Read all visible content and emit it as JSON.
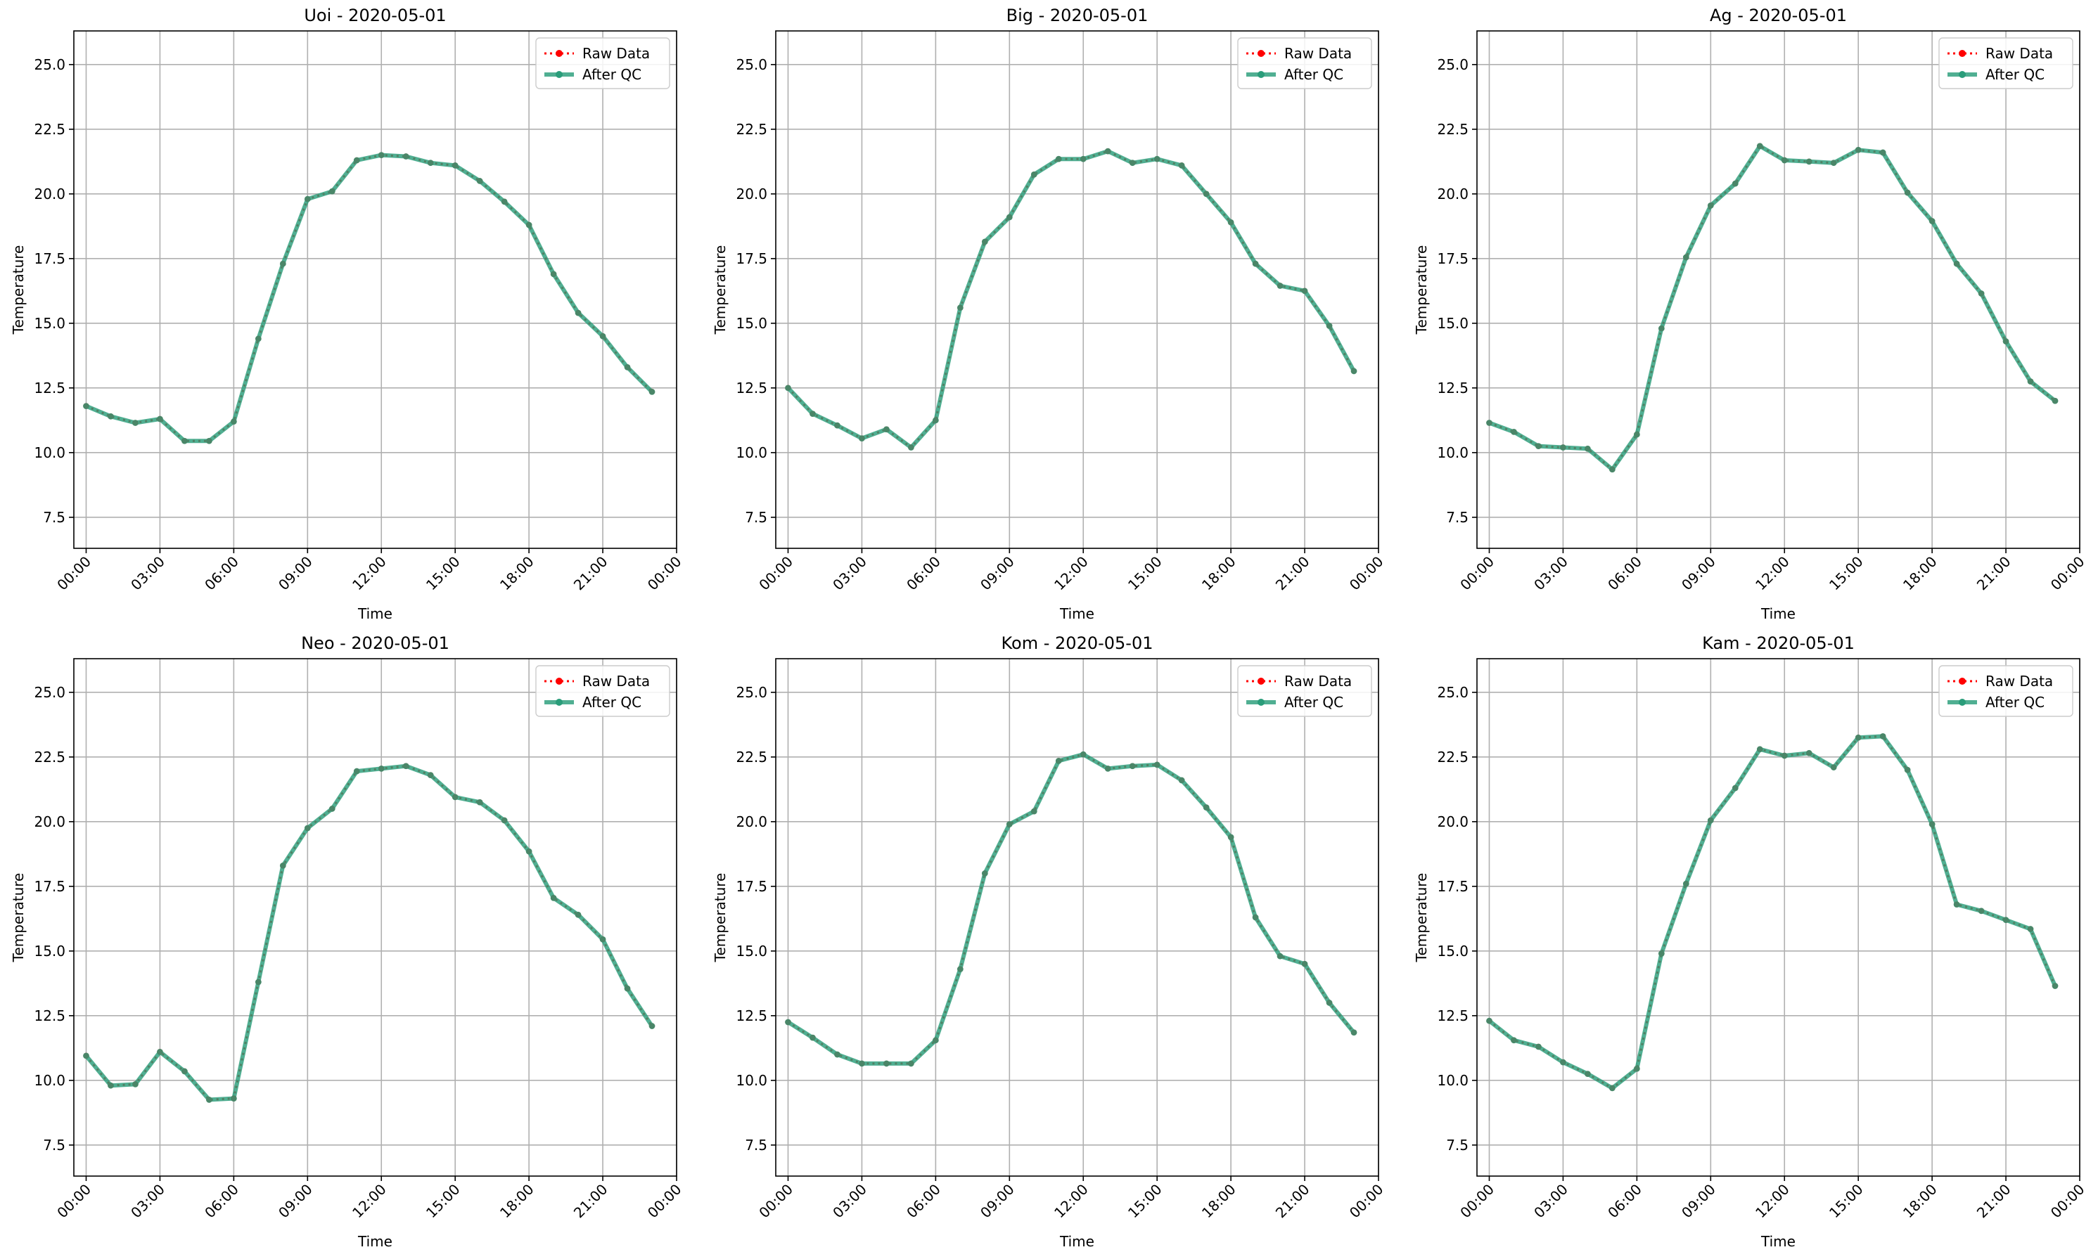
{
  "figure": {
    "colors": {
      "raw": "#ff0000",
      "qc": "#2a9d7a",
      "grid": "#b0b0b0",
      "axis": "#000000"
    }
  },
  "legend_labels": {
    "raw": "Raw Data",
    "qc": "After QC"
  },
  "chart_data": [
    {
      "type": "line",
      "title": "Uoi - 2020-05-01",
      "xlabel": "Time",
      "ylabel": "Temperature",
      "xlim": [
        -0.5,
        24.0
      ],
      "ylim": [
        6.3,
        26.3
      ],
      "xticks": [
        0,
        3,
        6,
        9,
        12,
        15,
        18,
        21,
        24
      ],
      "xtick_labels": [
        "00:00",
        "03:00",
        "06:00",
        "09:00",
        "12:00",
        "15:00",
        "18:00",
        "21:00",
        "00:00"
      ],
      "yticks": [
        7.5,
        10.0,
        12.5,
        15.0,
        17.5,
        20.0,
        22.5,
        25.0
      ],
      "ytick_labels": [
        "7.5",
        "10.0",
        "12.5",
        "15.0",
        "17.5",
        "20.0",
        "22.5",
        "25.0"
      ],
      "grid": true,
      "legend": "top-right",
      "x": [
        0,
        1,
        2,
        3,
        4,
        5,
        6,
        7,
        8,
        9,
        10,
        11,
        12,
        13,
        14,
        15,
        16,
        17,
        18,
        19,
        20,
        21,
        22,
        23
      ],
      "series": [
        {
          "name": "Raw Data",
          "values": [
            11.8,
            11.4,
            11.15,
            11.3,
            10.45,
            10.45,
            11.2,
            14.4,
            17.3,
            19.8,
            20.1,
            21.3,
            21.5,
            21.45,
            21.2,
            21.1,
            20.5,
            19.7,
            18.8,
            16.9,
            15.4,
            14.5,
            13.3,
            12.35
          ]
        },
        {
          "name": "After QC",
          "values": [
            11.8,
            11.4,
            11.15,
            11.3,
            10.45,
            10.45,
            11.2,
            14.4,
            17.3,
            19.8,
            20.1,
            21.3,
            21.5,
            21.45,
            21.2,
            21.1,
            20.5,
            19.7,
            18.8,
            16.9,
            15.4,
            14.5,
            13.3,
            12.35
          ]
        }
      ]
    },
    {
      "type": "line",
      "title": "Big - 2020-05-01",
      "xlabel": "Time",
      "ylabel": "Temperature",
      "xlim": [
        -0.5,
        24.0
      ],
      "ylim": [
        6.3,
        26.3
      ],
      "xticks": [
        0,
        3,
        6,
        9,
        12,
        15,
        18,
        21,
        24
      ],
      "xtick_labels": [
        "00:00",
        "03:00",
        "06:00",
        "09:00",
        "12:00",
        "15:00",
        "18:00",
        "21:00",
        "00:00"
      ],
      "yticks": [
        7.5,
        10.0,
        12.5,
        15.0,
        17.5,
        20.0,
        22.5,
        25.0
      ],
      "ytick_labels": [
        "7.5",
        "10.0",
        "12.5",
        "15.0",
        "17.5",
        "20.0",
        "22.5",
        "25.0"
      ],
      "grid": true,
      "legend": "top-right",
      "x": [
        0,
        1,
        2,
        3,
        4,
        5,
        6,
        7,
        8,
        9,
        10,
        11,
        12,
        13,
        14,
        15,
        16,
        17,
        18,
        19,
        20,
        21,
        22,
        23
      ],
      "series": [
        {
          "name": "Raw Data",
          "values": [
            12.5,
            11.5,
            11.05,
            10.55,
            10.9,
            10.2,
            11.25,
            15.6,
            18.15,
            19.1,
            20.75,
            21.35,
            21.35,
            21.65,
            21.2,
            21.35,
            21.1,
            20.0,
            18.9,
            17.3,
            16.45,
            16.25,
            14.9,
            13.15
          ]
        },
        {
          "name": "After QC",
          "values": [
            12.5,
            11.5,
            11.05,
            10.55,
            10.9,
            10.2,
            11.25,
            15.6,
            18.15,
            19.1,
            20.75,
            21.35,
            21.35,
            21.65,
            21.2,
            21.35,
            21.1,
            20.0,
            18.9,
            17.3,
            16.45,
            16.25,
            14.9,
            13.15
          ]
        }
      ]
    },
    {
      "type": "line",
      "title": "Ag - 2020-05-01",
      "xlabel": "Time",
      "ylabel": "Temperature",
      "xlim": [
        -0.5,
        24.0
      ],
      "ylim": [
        6.3,
        26.3
      ],
      "xticks": [
        0,
        3,
        6,
        9,
        12,
        15,
        18,
        21,
        24
      ],
      "xtick_labels": [
        "00:00",
        "03:00",
        "06:00",
        "09:00",
        "12:00",
        "15:00",
        "18:00",
        "21:00",
        "00:00"
      ],
      "yticks": [
        7.5,
        10.0,
        12.5,
        15.0,
        17.5,
        20.0,
        22.5,
        25.0
      ],
      "ytick_labels": [
        "7.5",
        "10.0",
        "12.5",
        "15.0",
        "17.5",
        "20.0",
        "22.5",
        "25.0"
      ],
      "grid": true,
      "legend": "top-right",
      "x": [
        0,
        1,
        2,
        3,
        4,
        5,
        6,
        7,
        8,
        9,
        10,
        11,
        12,
        13,
        14,
        15,
        16,
        17,
        18,
        19,
        20,
        21,
        22,
        23
      ],
      "series": [
        {
          "name": "Raw Data",
          "values": [
            11.15,
            10.8,
            10.25,
            10.2,
            10.15,
            9.35,
            10.7,
            14.8,
            17.55,
            19.55,
            20.4,
            21.85,
            21.3,
            21.25,
            21.2,
            21.7,
            21.6,
            20.05,
            18.95,
            17.3,
            16.15,
            14.3,
            12.75,
            12.0
          ]
        },
        {
          "name": "After QC",
          "values": [
            11.15,
            10.8,
            10.25,
            10.2,
            10.15,
            9.35,
            10.7,
            14.8,
            17.55,
            19.55,
            20.4,
            21.85,
            21.3,
            21.25,
            21.2,
            21.7,
            21.6,
            20.05,
            18.95,
            17.3,
            16.15,
            14.3,
            12.75,
            12.0
          ]
        }
      ]
    },
    {
      "type": "line",
      "title": "Neo - 2020-05-01",
      "xlabel": "Time",
      "ylabel": "Temperature",
      "xlim": [
        -0.5,
        24.0
      ],
      "ylim": [
        6.3,
        26.3
      ],
      "xticks": [
        0,
        3,
        6,
        9,
        12,
        15,
        18,
        21,
        24
      ],
      "xtick_labels": [
        "00:00",
        "03:00",
        "06:00",
        "09:00",
        "12:00",
        "15:00",
        "18:00",
        "21:00",
        "00:00"
      ],
      "yticks": [
        7.5,
        10.0,
        12.5,
        15.0,
        17.5,
        20.0,
        22.5,
        25.0
      ],
      "ytick_labels": [
        "7.5",
        "10.0",
        "12.5",
        "15.0",
        "17.5",
        "20.0",
        "22.5",
        "25.0"
      ],
      "grid": true,
      "legend": "top-right",
      "x": [
        0,
        1,
        2,
        3,
        4,
        5,
        6,
        7,
        8,
        9,
        10,
        11,
        12,
        13,
        14,
        15,
        16,
        17,
        18,
        19,
        20,
        21,
        22,
        23
      ],
      "series": [
        {
          "name": "Raw Data",
          "values": [
            10.95,
            9.8,
            9.85,
            11.1,
            10.35,
            9.25,
            9.3,
            13.8,
            18.3,
            19.75,
            20.5,
            21.95,
            22.05,
            22.15,
            21.8,
            20.95,
            20.75,
            20.05,
            18.85,
            17.05,
            16.4,
            15.45,
            13.55,
            12.1
          ]
        },
        {
          "name": "After QC",
          "values": [
            10.95,
            9.8,
            9.85,
            11.1,
            10.35,
            9.25,
            9.3,
            13.8,
            18.3,
            19.75,
            20.5,
            21.95,
            22.05,
            22.15,
            21.8,
            20.95,
            20.75,
            20.05,
            18.85,
            17.05,
            16.4,
            15.45,
            13.55,
            12.1
          ]
        }
      ]
    },
    {
      "type": "line",
      "title": "Kom - 2020-05-01",
      "xlabel": "Time",
      "ylabel": "Temperature",
      "xlim": [
        -0.5,
        24.0
      ],
      "ylim": [
        6.3,
        26.3
      ],
      "xticks": [
        0,
        3,
        6,
        9,
        12,
        15,
        18,
        21,
        24
      ],
      "xtick_labels": [
        "00:00",
        "03:00",
        "06:00",
        "09:00",
        "12:00",
        "15:00",
        "18:00",
        "21:00",
        "00:00"
      ],
      "yticks": [
        7.5,
        10.0,
        12.5,
        15.0,
        17.5,
        20.0,
        22.5,
        25.0
      ],
      "ytick_labels": [
        "7.5",
        "10.0",
        "12.5",
        "15.0",
        "17.5",
        "20.0",
        "22.5",
        "25.0"
      ],
      "grid": true,
      "legend": "top-right",
      "x": [
        0,
        1,
        2,
        3,
        4,
        5,
        6,
        7,
        8,
        9,
        10,
        11,
        12,
        13,
        14,
        15,
        16,
        17,
        18,
        19,
        20,
        21,
        22,
        23
      ],
      "series": [
        {
          "name": "Raw Data",
          "values": [
            12.25,
            11.65,
            11.0,
            10.65,
            10.65,
            10.65,
            11.55,
            14.3,
            18.0,
            19.9,
            20.4,
            22.35,
            22.6,
            22.05,
            22.15,
            22.2,
            21.6,
            20.55,
            19.4,
            16.3,
            14.8,
            14.5,
            13.0,
            11.85
          ]
        },
        {
          "name": "After QC",
          "values": [
            12.25,
            11.65,
            11.0,
            10.65,
            10.65,
            10.65,
            11.55,
            14.3,
            18.0,
            19.9,
            20.4,
            22.35,
            22.6,
            22.05,
            22.15,
            22.2,
            21.6,
            20.55,
            19.4,
            16.3,
            14.8,
            14.5,
            13.0,
            11.85
          ]
        }
      ]
    },
    {
      "type": "line",
      "title": "Kam - 2020-05-01",
      "xlabel": "Time",
      "ylabel": "Temperature",
      "xlim": [
        -0.5,
        24.0
      ],
      "ylim": [
        6.3,
        26.3
      ],
      "xticks": [
        0,
        3,
        6,
        9,
        12,
        15,
        18,
        21,
        24
      ],
      "xtick_labels": [
        "00:00",
        "03:00",
        "06:00",
        "09:00",
        "12:00",
        "15:00",
        "18:00",
        "21:00",
        "00:00"
      ],
      "yticks": [
        7.5,
        10.0,
        12.5,
        15.0,
        17.5,
        20.0,
        22.5,
        25.0
      ],
      "ytick_labels": [
        "7.5",
        "10.0",
        "12.5",
        "15.0",
        "17.5",
        "20.0",
        "22.5",
        "25.0"
      ],
      "grid": true,
      "legend": "top-right",
      "x": [
        0,
        1,
        2,
        3,
        4,
        5,
        6,
        7,
        8,
        9,
        10,
        11,
        12,
        13,
        14,
        15,
        16,
        17,
        18,
        19,
        20,
        21,
        22,
        23
      ],
      "series": [
        {
          "name": "Raw Data",
          "values": [
            12.3,
            11.55,
            11.3,
            10.7,
            10.25,
            9.7,
            10.45,
            14.9,
            17.6,
            20.05,
            21.3,
            22.8,
            22.55,
            22.65,
            22.1,
            23.25,
            23.3,
            22.0,
            19.9,
            16.8,
            16.55,
            16.2,
            15.85,
            13.65
          ]
        },
        {
          "name": "After QC",
          "values": [
            12.3,
            11.55,
            11.3,
            10.7,
            10.25,
            9.7,
            10.45,
            14.9,
            17.6,
            20.05,
            21.3,
            22.8,
            22.55,
            22.65,
            22.1,
            23.25,
            23.3,
            22.0,
            19.9,
            16.8,
            16.55,
            16.2,
            15.85,
            13.65
          ]
        }
      ]
    }
  ]
}
